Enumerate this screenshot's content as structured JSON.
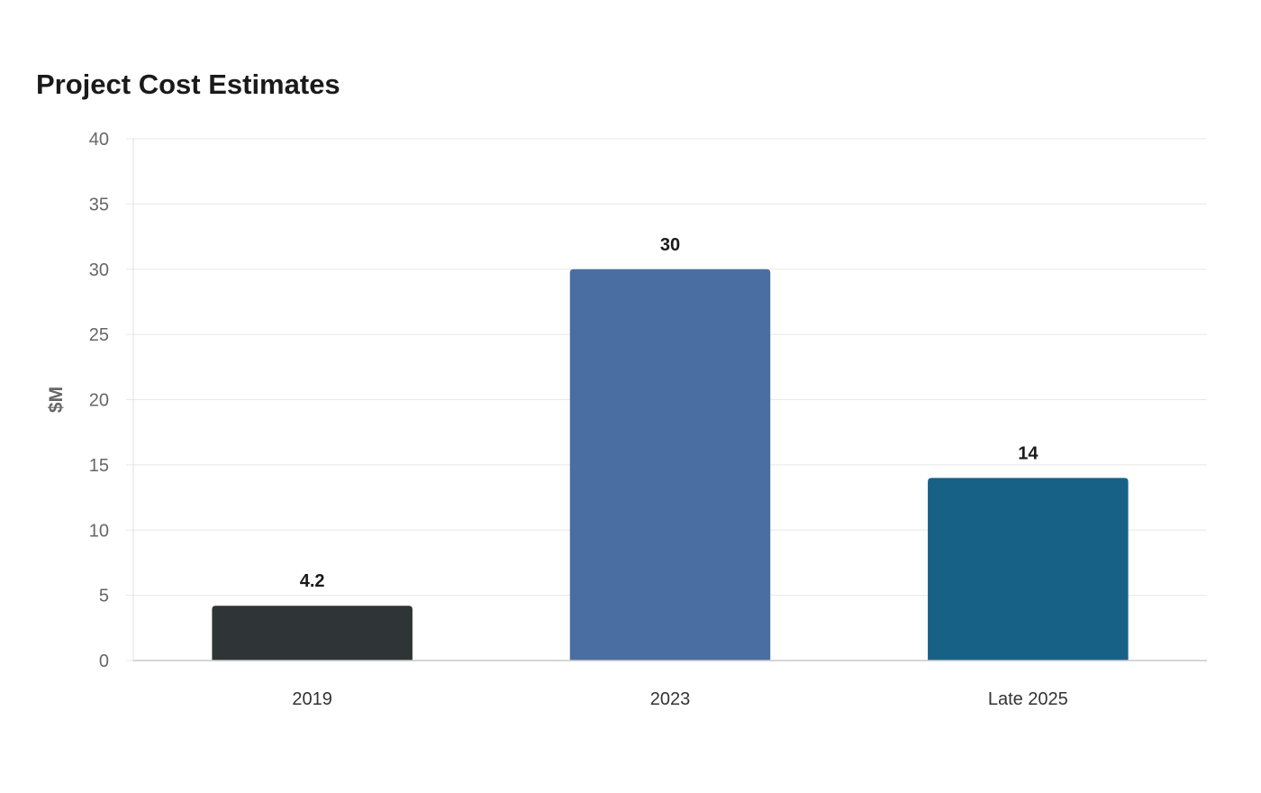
{
  "chart_data": {
    "type": "bar",
    "title": "Project Cost Estimates",
    "xlabel": "",
    "ylabel": "$M",
    "categories": [
      "2019",
      "2023",
      "Late 2025"
    ],
    "values": [
      4.2,
      30,
      14
    ],
    "value_labels": [
      "4.2",
      "30",
      "14"
    ],
    "colors": [
      "#2f3437",
      "#4a6ea2",
      "#176187"
    ],
    "ylim": [
      0,
      40
    ],
    "yticks": [
      0,
      5,
      10,
      15,
      20,
      25,
      30,
      35,
      40
    ],
    "grid": true,
    "legend": "none"
  }
}
